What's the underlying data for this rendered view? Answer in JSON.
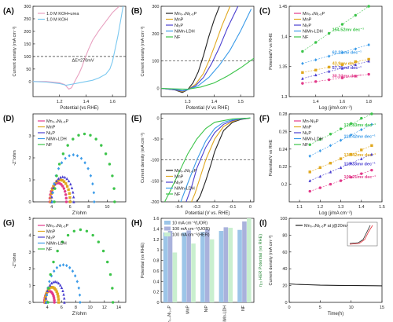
{
  "colors": {
    "black": "#222222",
    "red": "#e8333c",
    "mn": "#e23a8a",
    "mnp": "#e0a81f",
    "ni2p": "#4a3fd0",
    "nimn": "#3b9be8",
    "nf": "#3cc44a",
    "urea": "#e8a0c0",
    "koh": "#7ac8f0"
  },
  "chart_data": [
    {
      "id": "A",
      "type": "line",
      "panel_label": "(A)",
      "xlabel": "Potential (vs RHE)",
      "ylabel": "Current density (mA cm⁻²)",
      "xlim": [
        1.0,
        1.7
      ],
      "ylim": [
        -60,
        300
      ],
      "xticks": [
        1.2,
        1.4,
        1.6
      ],
      "yticks": [
        0,
        50,
        100,
        150,
        200,
        250,
        300
      ],
      "hline": 100,
      "annotation": "ΔE=270mV",
      "legend": [
        "1.0 M KOH+urea",
        "1.0 M KOH"
      ],
      "series": [
        {
          "name": "1.0 M KOH+urea",
          "color": "#e8a0c0",
          "x": [
            1.0,
            1.1,
            1.2,
            1.24,
            1.27,
            1.29,
            1.31,
            1.33,
            1.35,
            1.37,
            1.39,
            1.42,
            1.45,
            1.5,
            1.55,
            1.6,
            1.65
          ],
          "y": [
            0,
            0,
            -5,
            -12,
            -30,
            -25,
            -5,
            15,
            35,
            60,
            90,
            130,
            165,
            205,
            240,
            275,
            300
          ]
        },
        {
          "name": "1.0 M KOH",
          "color": "#7ac8f0",
          "x": [
            1.0,
            1.1,
            1.2,
            1.25,
            1.3,
            1.35,
            1.4,
            1.45,
            1.5,
            1.55,
            1.58,
            1.6,
            1.62,
            1.64,
            1.66,
            1.68
          ],
          "y": [
            0,
            -2,
            -8,
            -15,
            -10,
            -5,
            0,
            5,
            15,
            30,
            50,
            80,
            130,
            180,
            240,
            300
          ]
        }
      ]
    },
    {
      "id": "B",
      "type": "line",
      "panel_label": "(B)",
      "xlabel": "Potential (V vs RHE)",
      "ylabel": "Current density (mA cm⁻²)",
      "xlim": [
        1.2,
        1.55
      ],
      "ylim": [
        -30,
        300
      ],
      "xticks": [
        1.3,
        1.4,
        1.5
      ],
      "yticks": [
        0,
        100,
        200,
        300
      ],
      "hline": 100,
      "legend": [
        "Mn₀.₄Ni₁.₆P",
        "MnP",
        "Ni₂P",
        "NiMn-LDH",
        "NF"
      ],
      "series": [
        {
          "name": "Mn₀.₄Ni₁.₆P",
          "color": "#222222",
          "x": [
            1.2,
            1.25,
            1.28,
            1.3,
            1.32,
            1.34,
            1.36,
            1.38,
            1.4,
            1.42
          ],
          "y": [
            0,
            -5,
            -15,
            -5,
            20,
            60,
            120,
            190,
            250,
            300
          ]
        },
        {
          "name": "MnP",
          "color": "#e0a81f",
          "x": [
            1.2,
            1.25,
            1.28,
            1.3,
            1.33,
            1.36,
            1.38,
            1.4,
            1.43,
            1.46
          ],
          "y": [
            0,
            -5,
            -12,
            -5,
            15,
            55,
            100,
            150,
            230,
            300
          ]
        },
        {
          "name": "Ni₂P",
          "color": "#4a3fd0",
          "x": [
            1.2,
            1.25,
            1.28,
            1.3,
            1.33,
            1.36,
            1.39,
            1.42,
            1.45,
            1.49
          ],
          "y": [
            0,
            -5,
            -10,
            -5,
            10,
            40,
            90,
            150,
            220,
            300
          ]
        },
        {
          "name": "NiMn-LDH",
          "color": "#3b9be8",
          "x": [
            1.2,
            1.25,
            1.28,
            1.3,
            1.34,
            1.38,
            1.42,
            1.46,
            1.5,
            1.54
          ],
          "y": [
            0,
            -3,
            -8,
            -5,
            10,
            40,
            85,
            140,
            210,
            290
          ]
        },
        {
          "name": "NF",
          "color": "#3cc44a",
          "x": [
            1.2,
            1.25,
            1.3,
            1.35,
            1.4,
            1.45,
            1.5,
            1.55
          ],
          "y": [
            0,
            -2,
            -3,
            5,
            20,
            45,
            75,
            110
          ]
        }
      ]
    },
    {
      "id": "C",
      "type": "scatter",
      "panel_label": "(C)",
      "xlabel": "Log (j/mA cm⁻²)",
      "ylabel": "Potential/V vs RHE",
      "xlim": [
        1.2,
        1.9
      ],
      "ylim": [
        1.3,
        1.45
      ],
      "xticks": [
        1.4,
        1.6,
        1.8
      ],
      "yticks": [
        1.3,
        1.35,
        1.4,
        1.45
      ],
      "legend": [
        "Mn₀.₄Ni₁.₆P",
        "MnP",
        "Ni₂P",
        "NiMn-LDH",
        "NF"
      ],
      "series": [
        {
          "name": "Mn₀.₄Ni₁.₆P",
          "color": "#e23a8a",
          "x": [
            1.3,
            1.4,
            1.5,
            1.6,
            1.7,
            1.8
          ],
          "y": [
            1.322,
            1.325,
            1.328,
            1.331,
            1.334,
            1.337
          ],
          "slope_label": "30.24mv dec⁻¹"
        },
        {
          "name": "MnP",
          "color": "#e0a81f",
          "x": [
            1.3,
            1.4,
            1.5,
            1.6,
            1.7,
            1.8
          ],
          "y": [
            1.34,
            1.344,
            1.349,
            1.353,
            1.358,
            1.362
          ],
          "slope_label": "43.9mv dec⁻¹"
        },
        {
          "name": "Ni₂P",
          "color": "#4a3fd0",
          "x": [
            1.3,
            1.4,
            1.5,
            1.6,
            1.7,
            1.8
          ],
          "y": [
            1.33,
            1.336,
            1.342,
            1.347,
            1.353,
            1.359
          ],
          "slope_label": "57.76mv dec⁻¹"
        },
        {
          "name": "NiMn-LDH",
          "color": "#3b9be8",
          "x": [
            1.3,
            1.4,
            1.5,
            1.6,
            1.7,
            1.8
          ],
          "y": [
            1.355,
            1.361,
            1.367,
            1.373,
            1.379,
            1.386
          ],
          "slope_label": "62.23mv dec⁻¹"
        },
        {
          "name": "NF",
          "color": "#3cc44a",
          "x": [
            1.3,
            1.4,
            1.5,
            1.6,
            1.7,
            1.8
          ],
          "y": [
            1.375,
            1.39,
            1.405,
            1.42,
            1.435,
            1.45
          ],
          "slope_label": "154.52mv dec⁻¹"
        }
      ]
    },
    {
      "id": "D",
      "type": "scatter",
      "panel_label": "(D)",
      "xlabel": "Z'/ohm",
      "ylabel": "-Z\"/ohm",
      "xlim": [
        2,
        12
      ],
      "ylim": [
        0,
        4
      ],
      "xticks": [
        4,
        6,
        8,
        10
      ],
      "yticks": [
        0,
        1,
        2,
        3
      ],
      "legend": [
        "Mn₀.₄Ni₁.₆P",
        "MnP",
        "Ni₂P",
        "NiMn-LDH",
        "NF"
      ],
      "series": [
        {
          "name": "Mn₀.₄Ni₁.₆P",
          "color": "#e23a8a",
          "semicircle": [
            3.8,
            5.6
          ]
        },
        {
          "name": "MnP",
          "color": "#e0a81f",
          "semicircle": [
            3.9,
            6.0
          ]
        },
        {
          "name": "Ni₂P",
          "color": "#4a3fd0",
          "semicircle": [
            4.0,
            6.4
          ]
        },
        {
          "name": "NiMn-LDH",
          "color": "#3b9be8",
          "semicircle": [
            4.1,
            8.6
          ]
        },
        {
          "name": "NF",
          "color": "#3cc44a",
          "semicircle": [
            4.3,
            10.8
          ]
        }
      ]
    },
    {
      "id": "E",
      "type": "line",
      "panel_label": "(E)",
      "xlabel": "Potential (V vs. RHE)",
      "ylabel": "Current density (mA cm⁻²)",
      "xlim": [
        -0.5,
        0.02
      ],
      "ylim": [
        -200,
        10
      ],
      "xticks": [
        -0.4,
        -0.3,
        -0.2,
        -0.1,
        0.0
      ],
      "yticks": [
        -200,
        -150,
        -100,
        -50,
        0
      ],
      "hline": -100,
      "legend": [
        "Mn₀.₄Ni₁.₆P",
        "MnP",
        "Ni₂P",
        "NiMn-LDH",
        "NF"
      ],
      "series": [
        {
          "name": "Mn₀.₄Ni₁.₆P",
          "color": "#222222",
          "x": [
            0.0,
            -0.05,
            -0.1,
            -0.15,
            -0.2,
            -0.22,
            -0.25,
            -0.28,
            -0.3
          ],
          "y": [
            0,
            -3,
            -10,
            -30,
            -80,
            -110,
            -150,
            -185,
            -200
          ]
        },
        {
          "name": "MnP",
          "color": "#e0a81f",
          "x": [
            0.0,
            -0.05,
            -0.1,
            -0.15,
            -0.2,
            -0.25,
            -0.28,
            -0.31,
            -0.33
          ],
          "y": [
            0,
            -2,
            -8,
            -20,
            -50,
            -100,
            -140,
            -180,
            -200
          ]
        },
        {
          "name": "Ni₂P",
          "color": "#4a3fd0",
          "x": [
            0.0,
            -0.05,
            -0.1,
            -0.15,
            -0.2,
            -0.25,
            -0.3,
            -0.33,
            -0.36
          ],
          "y": [
            0,
            -2,
            -6,
            -15,
            -35,
            -70,
            -120,
            -165,
            -200
          ]
        },
        {
          "name": "NiMn-LDH",
          "color": "#3b9be8",
          "x": [
            0.0,
            -0.05,
            -0.1,
            -0.15,
            -0.2,
            -0.25,
            -0.3,
            -0.35,
            -0.39
          ],
          "y": [
            0,
            -1,
            -4,
            -10,
            -25,
            -55,
            -100,
            -155,
            -200
          ]
        },
        {
          "name": "NF",
          "color": "#3cc44a",
          "x": [
            0.0,
            -0.1,
            -0.2,
            -0.25,
            -0.3,
            -0.35,
            -0.4,
            -0.45,
            -0.48
          ],
          "y": [
            0,
            -2,
            -10,
            -25,
            -50,
            -85,
            -130,
            -175,
            -200
          ]
        }
      ]
    },
    {
      "id": "F",
      "type": "scatter",
      "panel_label": "(F)",
      "xlabel": "Log (j/mA cm⁻²)",
      "ylabel": "Potential/V vs RHE",
      "xlim": [
        1.05,
        1.5
      ],
      "ylim": [
        0.18,
        0.28
      ],
      "xticks": [
        1.1,
        1.2,
        1.3,
        1.4,
        1.5
      ],
      "yticks": [
        0.2,
        0.22,
        0.24,
        0.26,
        0.28
      ],
      "legend": [
        "Mn-Ni₂P",
        "MnP",
        "Ni₂P",
        "NiMn-LDH",
        "NF"
      ],
      "series": [
        {
          "name": "Mn-Ni₂P",
          "color": "#e23a8a",
          "x": [
            1.15,
            1.2,
            1.25,
            1.3,
            1.35,
            1.4,
            1.45
          ],
          "y": [
            0.192,
            0.196,
            0.2,
            0.204,
            0.208,
            0.212,
            0.216
          ],
          "slope_label": "100.21mv dec⁻¹"
        },
        {
          "name": "MnP",
          "color": "#e0a81f",
          "x": [
            1.15,
            1.2,
            1.25,
            1.3,
            1.35,
            1.4,
            1.45
          ],
          "y": [
            0.214,
            0.219,
            0.224,
            0.229,
            0.234,
            0.239,
            0.244
          ],
          "slope_label": "136.42mv dec⁻¹"
        },
        {
          "name": "Ni₂P",
          "color": "#4a3fd0",
          "x": [
            1.15,
            1.2,
            1.25,
            1.3,
            1.35,
            1.4,
            1.45
          ],
          "y": [
            0.204,
            0.209,
            0.214,
            0.219,
            0.224,
            0.229,
            0.234
          ],
          "slope_label": "119.33mv dec⁻¹"
        },
        {
          "name": "NiMn-LDH",
          "color": "#3b9be8",
          "x": [
            1.15,
            1.2,
            1.25,
            1.3,
            1.35,
            1.4,
            1.45
          ],
          "y": [
            0.232,
            0.238,
            0.244,
            0.25,
            0.256,
            0.262,
            0.268
          ],
          "slope_label": "118.42mv dec⁻¹"
        },
        {
          "name": "NF",
          "color": "#3cc44a",
          "x": [
            1.15,
            1.2,
            1.25,
            1.3,
            1.35,
            1.4,
            1.45
          ],
          "y": [
            0.245,
            0.251,
            0.257,
            0.263,
            0.269,
            0.275,
            0.28
          ],
          "slope_label": "120.83mv dec⁻¹"
        }
      ]
    },
    {
      "id": "G",
      "type": "scatter",
      "panel_label": "(G)",
      "xlabel": "Z'/ohm",
      "ylabel": "-Z\"/ohm",
      "xlim": [
        2,
        15
      ],
      "ylim": [
        0,
        5
      ],
      "xticks": [
        4,
        6,
        8,
        10,
        12,
        14
      ],
      "yticks": [
        0,
        1,
        2,
        3,
        4,
        5
      ],
      "legend": [
        "Mn₀.₄Ni₁.₆P",
        "MnP",
        "Ni₂P",
        "NiMn-LDH",
        "NF"
      ],
      "series": [
        {
          "name": "Mn₀.₄Ni₁.₆P",
          "color": "#e23a8a",
          "semicircle": [
            3.6,
            5.0
          ]
        },
        {
          "name": "MnP",
          "color": "#e0a81f",
          "semicircle": [
            3.7,
            5.6
          ]
        },
        {
          "name": "Ni₂P",
          "color": "#4a3fd0",
          "semicircle": [
            3.8,
            6.4
          ]
        },
        {
          "name": "NiMn-LDH",
          "color": "#3b9be8",
          "semicircle": [
            3.9,
            8.6
          ]
        },
        {
          "name": "NF",
          "color": "#3cc44a",
          "semicircle": [
            4.1,
            13.2
          ]
        }
      ]
    },
    {
      "id": "H",
      "type": "bar",
      "panel_label": "(H)",
      "xlabel": "",
      "ylabel": "Potential (vs RHE)",
      "ylabel_right": "η₁₀ HER Potential (vs RHE)",
      "ylim": [
        0,
        1.6
      ],
      "yticks": [
        0,
        0.2,
        0.4,
        0.6,
        0.8,
        1.0,
        1.2,
        1.4,
        1.6
      ],
      "categories": [
        "Mn₀.₄Ni₁.₆P",
        "MnP",
        "NiP",
        "NiMn-LDH",
        "NF"
      ],
      "series": [
        {
          "name": "10 mA cm⁻²(UOR)",
          "color": "#9cc5e8",
          "values": [
            1.33,
            1.33,
            1.34,
            1.36,
            1.38
          ]
        },
        {
          "name": "100 mA cm⁻²(UOR)",
          "color": "#a9b2dc",
          "values": [
            1.36,
            1.37,
            1.39,
            1.43,
            1.54
          ]
        },
        {
          "name": "100 mA cm⁻²(HER)",
          "color": "#c9efcf",
          "values": [
            0.95,
            1.12,
            1.2,
            1.42,
            1.6
          ]
        }
      ]
    },
    {
      "id": "I",
      "type": "line",
      "panel_label": "(I)",
      "xlabel": "Time(h)",
      "ylabel": "Current density (mA cm⁻²)",
      "xlim": [
        0,
        15
      ],
      "ylim": [
        0,
        100
      ],
      "xticks": [
        0,
        5,
        10,
        15
      ],
      "yticks": [
        0,
        20,
        40,
        60,
        80,
        100
      ],
      "legend": [
        "Mn₀.₄Ni₁.₆P at j@20mA cm⁻²"
      ],
      "series": [
        {
          "name": "Mn₀.₄Ni₁.₆P at j@20mA cm⁻²",
          "color": "#222222",
          "x": [
            0,
            1,
            3,
            5,
            8,
            11,
            14,
            15
          ],
          "y": [
            22,
            21.5,
            21,
            20.5,
            20.2,
            20,
            19.8,
            19.7
          ]
        }
      ]
    }
  ]
}
